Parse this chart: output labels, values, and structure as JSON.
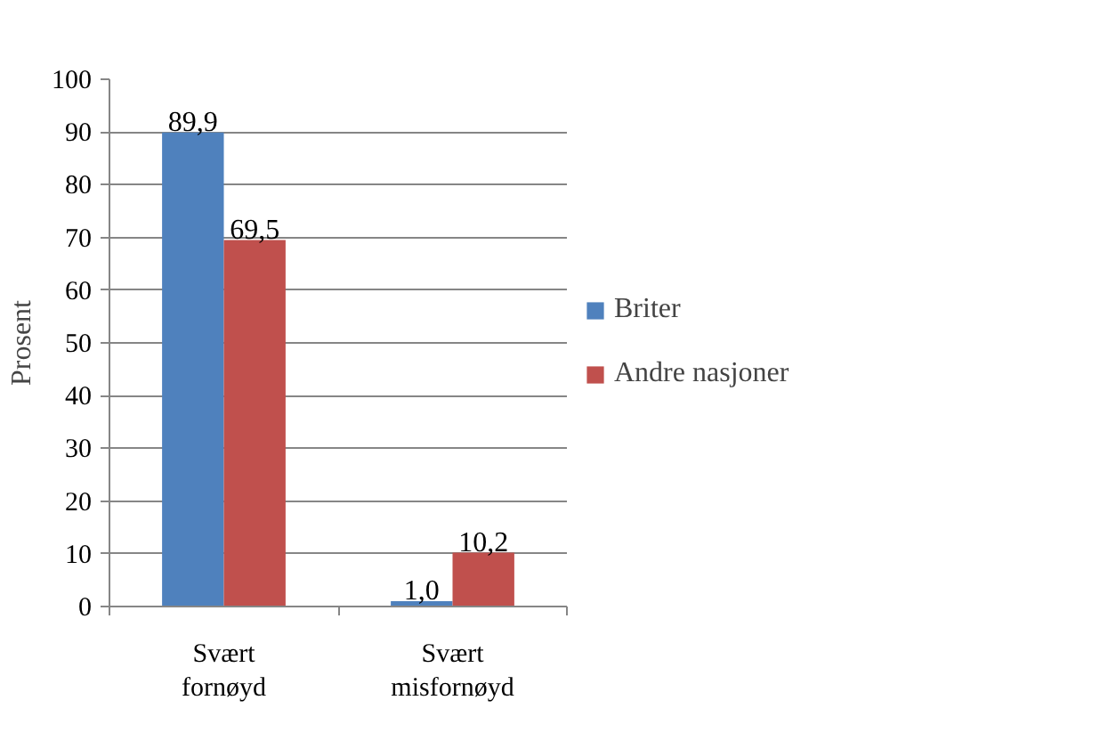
{
  "chart_data": {
    "type": "bar",
    "ylabel": "Prosent",
    "categories": [
      "Svært\nfornøyd",
      "Svært\nmisfornøyd"
    ],
    "series": [
      {
        "name": "Briter",
        "color": "#4f81bd",
        "values": [
          89.9,
          1.0
        ],
        "value_labels": [
          "89,9",
          "1,0"
        ]
      },
      {
        "name": "Andre nasjoner",
        "color": "#c0504d",
        "values": [
          69.5,
          10.2
        ],
        "value_labels": [
          "69,5",
          "10,2"
        ]
      }
    ],
    "ylim": [
      0,
      100
    ],
    "yticks": [
      0,
      10,
      20,
      30,
      40,
      50,
      60,
      70,
      80,
      90,
      100
    ],
    "grid": "y",
    "legend": "right"
  }
}
